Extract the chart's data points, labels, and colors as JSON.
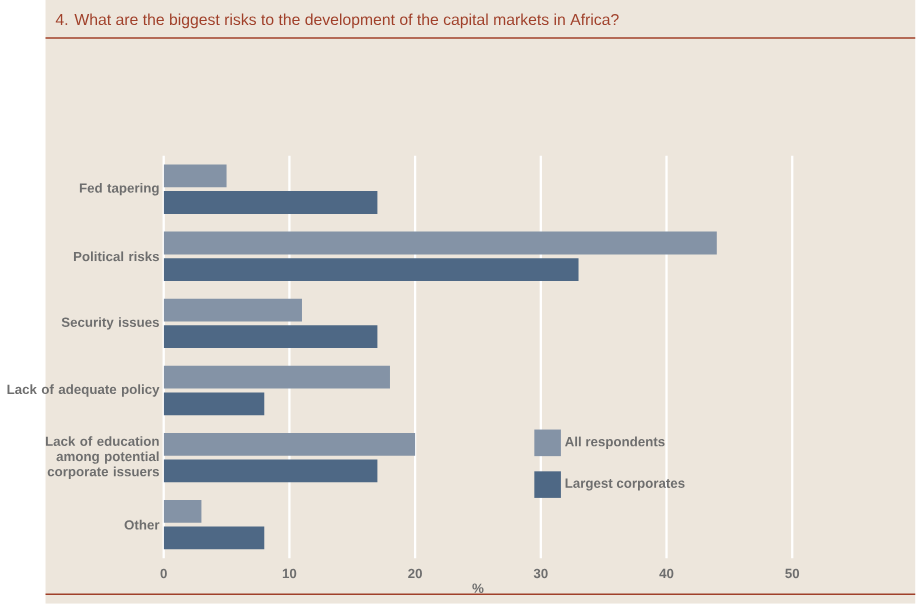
{
  "chart_data": {
    "type": "bar",
    "orientation": "horizontal",
    "title": "4. What are the biggest risks to the development of the capital markets in Africa?",
    "xlabel": "%",
    "categories": [
      "Fed tapering",
      "Political risks",
      "Security issues",
      "Lack of adequate policy",
      "Lack of education among potential corporate issuers",
      "Other"
    ],
    "series": [
      {
        "name": "All respondents",
        "color": "#8493a6",
        "values": [
          5,
          44,
          11,
          18,
          20,
          3
        ]
      },
      {
        "name": "Largest corporates",
        "color": "#4e6885",
        "values": [
          17,
          33,
          17,
          8,
          17,
          8
        ]
      }
    ],
    "xlim": [
      0,
      50
    ],
    "xticks": [
      0,
      10,
      20,
      30,
      40,
      50
    ],
    "grid": "x",
    "legend": "right"
  }
}
